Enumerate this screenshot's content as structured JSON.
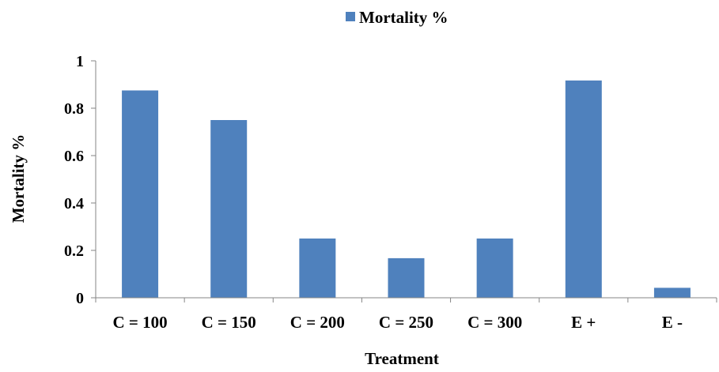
{
  "chart_data": {
    "type": "bar",
    "title": "",
    "xlabel": "Treatment",
    "ylabel": "Mortality %",
    "categories": [
      "C = 100",
      "C = 150",
      "C = 200",
      "C = 250",
      "C = 300",
      "E +",
      "E -"
    ],
    "series": [
      {
        "name": "Mortality %",
        "values": [
          0.875,
          0.75,
          0.25,
          0.167,
          0.25,
          0.917,
          0.042
        ]
      }
    ],
    "ylim": [
      0,
      1
    ],
    "yticks": [
      "0",
      "0.2",
      "0.4",
      "0.6",
      "0.8",
      "1"
    ],
    "grid": false,
    "legend_position": "top-center",
    "colors": {
      "bar": "#4f81bd",
      "axis": "#868686"
    }
  }
}
